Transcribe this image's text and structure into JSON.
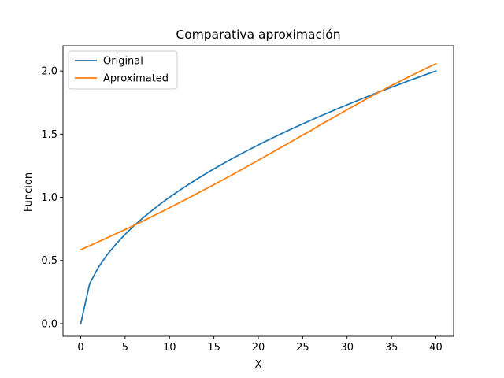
{
  "chart_data": {
    "type": "line",
    "title": "Comparativa aproximación",
    "xlabel": "X",
    "ylabel": "Funcion",
    "xlim": [
      -2,
      42
    ],
    "ylim": [
      -0.1,
      2.2
    ],
    "xticks": [
      0,
      5,
      10,
      15,
      20,
      25,
      30,
      35,
      40
    ],
    "xtick_labels": [
      "0",
      "5",
      "10",
      "15",
      "20",
      "25",
      "30",
      "35",
      "40"
    ],
    "yticks": [
      0.0,
      0.5,
      1.0,
      1.5,
      2.0
    ],
    "ytick_labels": [
      "0.0",
      "0.5",
      "1.0",
      "1.5",
      "2.0"
    ],
    "grid": false,
    "legend_position": "top-left",
    "x": [
      0,
      1,
      2,
      3,
      4,
      5,
      6,
      7,
      8,
      9,
      10,
      11,
      12,
      13,
      14,
      15,
      16,
      17,
      18,
      19,
      20,
      21,
      22,
      23,
      24,
      25,
      26,
      27,
      28,
      29,
      30,
      31,
      32,
      33,
      34,
      35,
      36,
      37,
      38,
      39,
      40
    ],
    "series": [
      {
        "name": "Original",
        "color": "#1f77b4",
        "values": [
          0.0,
          0.316,
          0.447,
          0.548,
          0.632,
          0.707,
          0.775,
          0.837,
          0.894,
          0.949,
          1.0,
          1.049,
          1.095,
          1.14,
          1.183,
          1.225,
          1.265,
          1.304,
          1.342,
          1.378,
          1.414,
          1.449,
          1.483,
          1.517,
          1.549,
          1.581,
          1.612,
          1.643,
          1.673,
          1.703,
          1.732,
          1.761,
          1.789,
          1.817,
          1.844,
          1.871,
          1.897,
          1.924,
          1.949,
          1.975,
          2.0
        ]
      },
      {
        "name": "Aproximated",
        "color": "#ff7f0e",
        "values": [
          0.585,
          0.616,
          0.648,
          0.68,
          0.712,
          0.745,
          0.778,
          0.812,
          0.847,
          0.881,
          0.917,
          0.953,
          0.989,
          1.026,
          1.063,
          1.1,
          1.138,
          1.176,
          1.215,
          1.254,
          1.293,
          1.333,
          1.372,
          1.412,
          1.452,
          1.492,
          1.531,
          1.574,
          1.613,
          1.653,
          1.693,
          1.732,
          1.771,
          1.81,
          1.847,
          1.885,
          1.92,
          1.955,
          1.99,
          2.024,
          2.057
        ]
      }
    ]
  }
}
